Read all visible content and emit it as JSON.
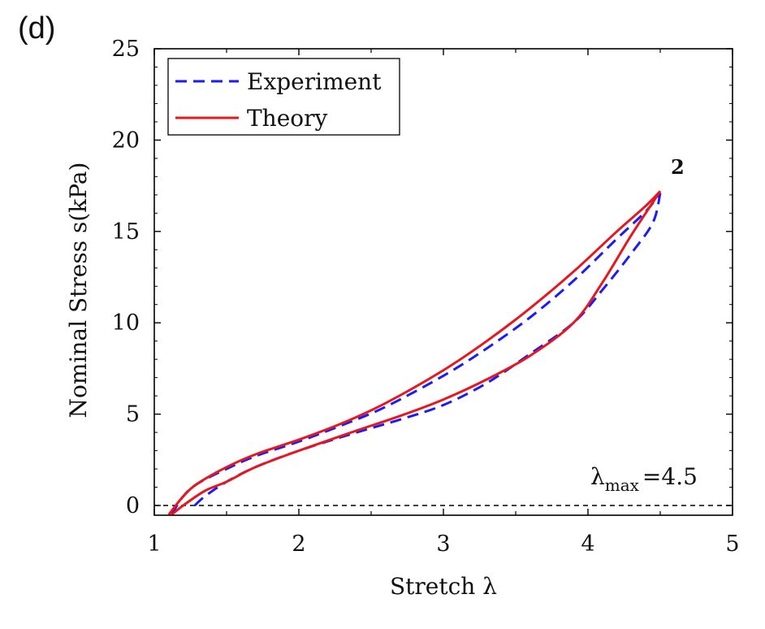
{
  "panel_label": "(d)",
  "chart_data": {
    "type": "line",
    "title": "",
    "xlabel": "Stretch λ",
    "ylabel": "Nominal Stress s(kPa)",
    "xlim": [
      1,
      5
    ],
    "ylim": [
      -0.5,
      25
    ],
    "xticks": [
      1,
      2,
      3,
      4,
      5
    ],
    "yticks": [
      0,
      5,
      10,
      15,
      20,
      25
    ],
    "grid": false,
    "legend_position": "top-left",
    "reference_line": {
      "y": 0,
      "style": "dashed",
      "color": "#000000"
    },
    "annotations": {
      "corner_label": "2",
      "lambda_symbol": "λ",
      "lambda_subscript": "max",
      "lambda_value": "=4.5"
    },
    "series": [
      {
        "name": "Experiment",
        "color": "#1a1aff",
        "style": "dashed",
        "loading": {
          "x": [
            1.12,
            1.2,
            1.3,
            1.5,
            1.7,
            2.0,
            2.3,
            2.6,
            3.0,
            3.3,
            3.6,
            3.9,
            4.2,
            4.4,
            4.5
          ],
          "y": [
            -0.5,
            0.5,
            1.2,
            2.0,
            2.7,
            3.5,
            4.4,
            5.4,
            7.1,
            8.6,
            10.3,
            12.3,
            14.6,
            16.1,
            17.1
          ]
        },
        "unloading": {
          "x": [
            4.5,
            4.45,
            4.3,
            4.1,
            3.9,
            3.6,
            3.3,
            3.0,
            2.7,
            2.4,
            2.0,
            1.7,
            1.5,
            1.35,
            1.28
          ],
          "y": [
            17.1,
            15.5,
            13.8,
            11.8,
            10.0,
            8.3,
            6.7,
            5.5,
            4.7,
            4.0,
            3.0,
            2.1,
            1.3,
            0.5,
            0.0
          ]
        }
      },
      {
        "name": "Theory",
        "color": "#e8161d",
        "style": "solid",
        "loading": {
          "x": [
            1.1,
            1.2,
            1.3,
            1.5,
            1.7,
            2.0,
            2.3,
            2.6,
            3.0,
            3.3,
            3.6,
            3.9,
            4.2,
            4.4,
            4.5
          ],
          "y": [
            -0.5,
            0.5,
            1.2,
            2.1,
            2.8,
            3.6,
            4.5,
            5.6,
            7.4,
            9.0,
            10.8,
            12.8,
            15.0,
            16.4,
            17.2
          ]
        },
        "unloading": {
          "x": [
            4.5,
            4.3,
            4.1,
            3.9,
            3.6,
            3.3,
            3.0,
            2.7,
            2.4,
            2.0,
            1.7,
            1.5,
            1.35,
            1.2,
            1.12
          ],
          "y": [
            17.2,
            14.8,
            12.2,
            10.0,
            8.2,
            6.9,
            5.8,
            4.9,
            4.1,
            3.0,
            2.1,
            1.3,
            0.8,
            0.0,
            -0.5
          ]
        }
      }
    ]
  }
}
